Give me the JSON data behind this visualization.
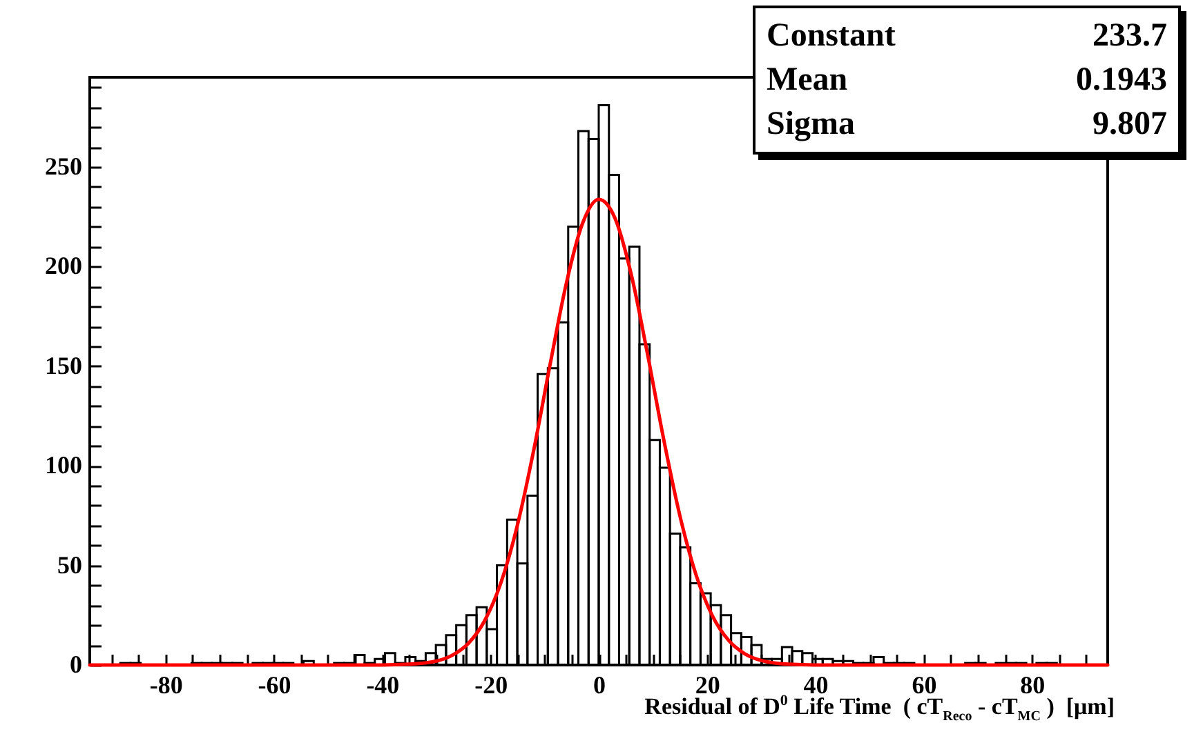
{
  "chart_data": {
    "type": "histogram",
    "xlabel": "Residual of D$^{0}$ Life Time  ( cT$_{Reco}$ - cT$_{MC}$ )  [μm]",
    "annotations": [
      "Constant 233.7",
      "Mean 0.1943",
      "Sigma 9.807"
    ],
    "bins": [
      -94,
      -92.12,
      -90.24,
      -88.36,
      -86.48,
      -84.6,
      -82.72,
      -80.84,
      -78.96,
      -77.08,
      -75.2,
      -73.32,
      -71.44,
      -69.56,
      -67.68,
      -65.8,
      -63.92,
      -62.04,
      -60.16,
      -58.28,
      -56.4,
      -54.52,
      -52.64,
      -50.76,
      -48.88,
      -47,
      -45.12,
      -43.24,
      -41.36,
      -39.48,
      -37.6,
      -35.72,
      -33.84,
      -31.96,
      -30.08,
      -28.2,
      -26.32,
      -24.44,
      -22.56,
      -20.68,
      -18.8,
      -16.92,
      -15.04,
      -13.16,
      -11.28,
      -9.4,
      -7.52,
      -5.64,
      -3.76,
      -1.88,
      0,
      1.88,
      3.76,
      5.64,
      7.52,
      9.4,
      11.28,
      13.16,
      15.04,
      16.92,
      18.8,
      20.68,
      22.56,
      24.44,
      26.32,
      28.2,
      30.08,
      31.96,
      33.84,
      35.72,
      37.6,
      39.48,
      41.36,
      43.24,
      45.12,
      47,
      48.88,
      50.76,
      52.64,
      54.52,
      56.4,
      58.28,
      60.16,
      62.04,
      63.92,
      65.8,
      67.68,
      69.56,
      71.44,
      73.32,
      75.2,
      77.08,
      78.96,
      80.84,
      82.72,
      84.6,
      86.48,
      88.36,
      90.24,
      92.12,
      94
    ],
    "series": [
      {
        "color": "#000000",
        "values": [
          0,
          0,
          0,
          1,
          1,
          0,
          0,
          0,
          0,
          0,
          1,
          1,
          1,
          1,
          1,
          0,
          1,
          1,
          1,
          1,
          0,
          2,
          0,
          0,
          1,
          1,
          5,
          1,
          3,
          6,
          1,
          4,
          2,
          6,
          10,
          15,
          20,
          25,
          29,
          18,
          50,
          73,
          51,
          85,
          146,
          149,
          172,
          220,
          268,
          264,
          281,
          246,
          204,
          210,
          161,
          113,
          99,
          66,
          59,
          41,
          36,
          30,
          25,
          16,
          14,
          10,
          3,
          3,
          9,
          7,
          6,
          3,
          3,
          2,
          2,
          1,
          1,
          4,
          1,
          1,
          1,
          0,
          0,
          0,
          0,
          0,
          1,
          1,
          0,
          1,
          1,
          1,
          0,
          1,
          1,
          0,
          0,
          0,
          0,
          0
        ]
      },
      {
        "type": "line",
        "color": "#ff0000",
        "x": [
          -94,
          -40,
          -35,
          -30,
          -27,
          -24,
          -21,
          -18,
          -15,
          -12,
          -9,
          -6,
          -3,
          0,
          3,
          6,
          9,
          12,
          15,
          18,
          21,
          24,
          27,
          30,
          35,
          40,
          94
        ],
        "values": [
          0,
          0,
          0.4,
          2,
          5,
          11.1,
          22.6,
          41.8,
          70.4,
          107.9,
          150.6,
          191.4,
          221.6,
          233.7,
          224.3,
          196.1,
          156.2,
          113.2,
          74.8,
          45,
          24.6,
          12.3,
          5.6,
          2.3,
          0.4,
          0,
          0
        ]
      }
    ],
    "xlim": [
      -94,
      94
    ],
    "ylim": [
      0,
      295
    ],
    "xticks": [
      {
        "value": -90,
        "label": null
      },
      {
        "value": -85,
        "label": null
      },
      -80,
      {
        "value": -75,
        "label": null
      },
      {
        "value": -70,
        "label": null
      },
      {
        "value": -65,
        "label": null
      },
      -60,
      {
        "value": -55,
        "label": null
      },
      {
        "value": -50,
        "label": null
      },
      {
        "value": -45,
        "label": null
      },
      -40,
      {
        "value": -35,
        "label": null
      },
      {
        "value": -30,
        "label": null
      },
      {
        "value": -25,
        "label": null
      },
      -20,
      {
        "value": -15,
        "label": null
      },
      {
        "value": -10,
        "label": null
      },
      {
        "value": -5,
        "label": null
      },
      0,
      {
        "value": 5,
        "label": null
      },
      {
        "value": 10,
        "label": null
      },
      {
        "value": 15,
        "label": null
      },
      20,
      {
        "value": 25,
        "label": null
      },
      {
        "value": 30,
        "label": null
      },
      {
        "value": 35,
        "label": null
      },
      40,
      {
        "value": 45,
        "label": null
      },
      {
        "value": 50,
        "label": null
      },
      {
        "value": 55,
        "label": null
      },
      60,
      {
        "value": 65,
        "label": null
      },
      {
        "value": 70,
        "label": null
      },
      {
        "value": 75,
        "label": null
      },
      80,
      {
        "value": 85,
        "label": null
      },
      {
        "value": 90,
        "label": null
      }
    ],
    "yticks": [
      0,
      {
        "value": 10,
        "label": null
      },
      {
        "value": 20,
        "label": null
      },
      {
        "value": 30,
        "label": null
      },
      {
        "value": 40,
        "label": null
      },
      50,
      {
        "value": 60,
        "label": null
      },
      {
        "value": 70,
        "label": null
      },
      {
        "value": 80,
        "label": null
      },
      {
        "value": 90,
        "label": null
      },
      100,
      {
        "value": 110,
        "label": null
      },
      {
        "value": 120,
        "label": null
      },
      {
        "value": 130,
        "label": null
      },
      {
        "value": 140,
        "label": null
      },
      150,
      {
        "value": 160,
        "label": null
      },
      {
        "value": 170,
        "label": null
      },
      {
        "value": 180,
        "label": null
      },
      {
        "value": 190,
        "label": null
      },
      200,
      {
        "value": 210,
        "label": null
      },
      {
        "value": 220,
        "label": null
      },
      {
        "value": 230,
        "label": null
      },
      {
        "value": 240,
        "label": null
      },
      250,
      {
        "value": 260,
        "label": null
      },
      {
        "value": 270,
        "label": null
      },
      {
        "value": 280,
        "label": null
      },
      {
        "value": 290,
        "label": null
      }
    ]
  }
}
